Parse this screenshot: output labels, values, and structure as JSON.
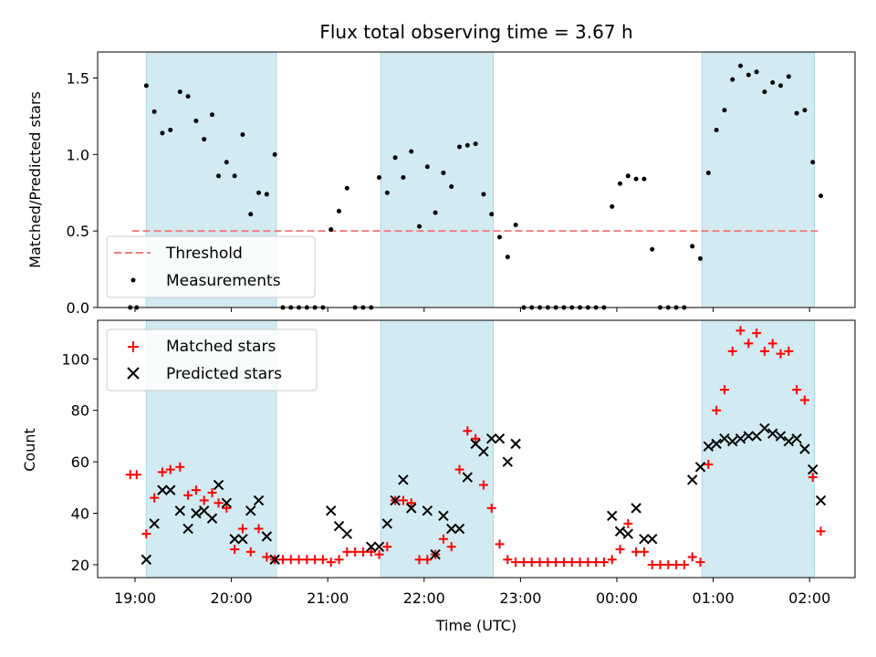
{
  "chart_data": [
    {
      "type": "scatter",
      "title": "Flux total observing time = 3.67 h",
      "ylabel": "Matched/Predicted stars",
      "xlabel": "",
      "ylim": [
        0,
        1.67
      ],
      "yticks": [
        "0.0",
        "0.5",
        "1.0",
        "1.5"
      ],
      "grid": false,
      "legend_position": "lower left",
      "threshold": {
        "name": "Threshold",
        "value": 0.5,
        "x_start": "18:58",
        "x_end": "02:05",
        "color": "#f08080",
        "style": "dashed"
      },
      "shaded_intervals": [
        {
          "start": "19:07",
          "end": "20:28"
        },
        {
          "start": "21:33",
          "end": "22:43"
        },
        {
          "start": "00:53",
          "end": "02:03"
        }
      ],
      "series": [
        {
          "name": "Measurements",
          "color": "#000000",
          "x": [
            "18:57",
            "19:01",
            "19:07",
            "19:12",
            "19:17",
            "19:22",
            "19:28",
            "19:33",
            "19:38",
            "19:43",
            "19:48",
            "19:52",
            "19:57",
            "20:02",
            "20:07",
            "20:12",
            "20:17",
            "20:22",
            "20:27",
            "20:32",
            "20:37",
            "20:42",
            "20:47",
            "20:52",
            "20:57",
            "21:02",
            "21:07",
            "21:12",
            "21:17",
            "21:22",
            "21:27",
            "21:32",
            "21:37",
            "21:42",
            "21:47",
            "21:52",
            "21:57",
            "22:02",
            "22:07",
            "22:12",
            "22:17",
            "22:22",
            "22:27",
            "22:32",
            "22:37",
            "22:42",
            "22:47",
            "22:52",
            "22:57",
            "23:02",
            "23:07",
            "23:12",
            "23:17",
            "23:22",
            "23:27",
            "23:32",
            "23:37",
            "23:42",
            "23:47",
            "23:52",
            "23:57",
            "00:02",
            "00:07",
            "00:12",
            "00:17",
            "00:22",
            "00:27",
            "00:32",
            "00:37",
            "00:42",
            "00:47",
            "00:52",
            "00:57",
            "01:02",
            "01:07",
            "01:12",
            "01:17",
            "01:22",
            "01:27",
            "01:32",
            "01:37",
            "01:42",
            "01:47",
            "01:52",
            "01:57",
            "02:02",
            "02:07"
          ],
          "y": [
            0.0,
            0.0,
            1.45,
            1.28,
            1.14,
            1.16,
            1.41,
            1.38,
            1.22,
            1.1,
            1.26,
            0.86,
            0.95,
            0.86,
            1.13,
            0.61,
            0.75,
            0.74,
            1.0,
            0.0,
            0.0,
            0.0,
            0.0,
            0.0,
            0.0,
            0.51,
            0.63,
            0.78,
            0.0,
            0.0,
            0.0,
            0.85,
            0.75,
            0.98,
            0.85,
            1.02,
            0.53,
            0.92,
            0.62,
            0.88,
            0.79,
            1.05,
            1.06,
            1.07,
            0.74,
            0.61,
            0.46,
            0.33,
            0.54,
            0.0,
            0.0,
            0.0,
            0.0,
            0.0,
            0.0,
            0.0,
            0.0,
            0.0,
            0.0,
            0.0,
            0.66,
            0.81,
            0.86,
            0.84,
            0.84,
            0.38,
            0.0,
            0.0,
            0.0,
            0.0,
            0.4,
            0.32,
            0.88,
            1.16,
            1.29,
            1.49,
            1.58,
            1.52,
            1.54,
            1.41,
            1.47,
            1.45,
            1.51,
            1.27,
            1.29,
            0.95,
            0.73
          ]
        }
      ]
    },
    {
      "type": "scatter",
      "title": "",
      "xlabel": "Time (UTC)",
      "ylabel": "Count",
      "ylim": [
        15,
        115
      ],
      "yticks": [
        "20",
        "40",
        "60",
        "80",
        "100"
      ],
      "xticks": [
        "19:00",
        "20:00",
        "21:00",
        "22:00",
        "23:00",
        "00:00",
        "01:00",
        "02:00"
      ],
      "grid": false,
      "legend_position": "upper left",
      "shaded_intervals": [
        {
          "start": "19:07",
          "end": "20:28"
        },
        {
          "start": "21:33",
          "end": "22:43"
        },
        {
          "start": "00:53",
          "end": "02:03"
        }
      ],
      "series": [
        {
          "name": "Matched stars",
          "marker": "plus",
          "color": "#ff0000",
          "x": [
            "18:57",
            "19:01",
            "19:07",
            "19:12",
            "19:17",
            "19:22",
            "19:28",
            "19:33",
            "19:38",
            "19:43",
            "19:48",
            "19:52",
            "19:57",
            "20:02",
            "20:07",
            "20:12",
            "20:17",
            "20:22",
            "20:27",
            "20:32",
            "20:37",
            "20:42",
            "20:47",
            "20:52",
            "20:57",
            "21:02",
            "21:07",
            "21:12",
            "21:17",
            "21:22",
            "21:27",
            "21:32",
            "21:37",
            "21:42",
            "21:47",
            "21:52",
            "21:57",
            "22:02",
            "22:07",
            "22:12",
            "22:17",
            "22:22",
            "22:27",
            "22:32",
            "22:37",
            "22:42",
            "22:47",
            "22:52",
            "22:57",
            "23:02",
            "23:07",
            "23:12",
            "23:17",
            "23:22",
            "23:27",
            "23:32",
            "23:37",
            "23:42",
            "23:47",
            "23:52",
            "23:57",
            "00:02",
            "00:07",
            "00:12",
            "00:17",
            "00:22",
            "00:27",
            "00:32",
            "00:37",
            "00:42",
            "00:47",
            "00:52",
            "00:57",
            "01:02",
            "01:07",
            "01:12",
            "01:17",
            "01:22",
            "01:27",
            "01:32",
            "01:37",
            "01:42",
            "01:47",
            "01:52",
            "01:57",
            "02:02",
            "02:07"
          ],
          "y": [
            55,
            55,
            32,
            46,
            56,
            57,
            58,
            47,
            49,
            45,
            48,
            44,
            42,
            26,
            34,
            25,
            34,
            23,
            22,
            22,
            22,
            22,
            22,
            22,
            22,
            21,
            22,
            25,
            25,
            25,
            25,
            24,
            27,
            45,
            45,
            44,
            22,
            22,
            24,
            30,
            27,
            57,
            72,
            69,
            51,
            42,
            28,
            22,
            21,
            21,
            21,
            21,
            21,
            21,
            21,
            21,
            21,
            21,
            21,
            21,
            22,
            26,
            36,
            25,
            25,
            20,
            20,
            20,
            20,
            20,
            23,
            21,
            59,
            80,
            88,
            103,
            111,
            106,
            110,
            103,
            106,
            102,
            103,
            88,
            84,
            54,
            33
          ]
        },
        {
          "name": "Predicted stars",
          "marker": "x",
          "color": "#000000",
          "x": [
            "19:07",
            "19:12",
            "19:17",
            "19:22",
            "19:28",
            "19:33",
            "19:38",
            "19:43",
            "19:48",
            "19:52",
            "19:57",
            "20:02",
            "20:07",
            "20:12",
            "20:17",
            "20:22",
            "20:27",
            "21:02",
            "21:07",
            "21:12",
            "21:27",
            "21:32",
            "21:37",
            "21:42",
            "21:47",
            "21:52",
            "22:02",
            "22:07",
            "22:12",
            "22:17",
            "22:22",
            "22:27",
            "22:32",
            "22:37",
            "22:42",
            "22:47",
            "22:52",
            "22:57",
            "23:57",
            "00:02",
            "00:07",
            "00:12",
            "00:17",
            "00:22",
            "00:47",
            "00:52",
            "00:57",
            "01:02",
            "01:07",
            "01:12",
            "01:17",
            "01:22",
            "01:27",
            "01:32",
            "01:37",
            "01:42",
            "01:47",
            "01:52",
            "01:57",
            "02:02",
            "02:07"
          ],
          "y": [
            22,
            36,
            49,
            49,
            41,
            34,
            40,
            41,
            38,
            51,
            44,
            30,
            30,
            41,
            45,
            31,
            22,
            41,
            35,
            32,
            27,
            27,
            36,
            45,
            53,
            42,
            41,
            24,
            39,
            34,
            34,
            54,
            67,
            64,
            69,
            69,
            60,
            67,
            39,
            33,
            32,
            42,
            30,
            30,
            53,
            58,
            66,
            67,
            69,
            68,
            69,
            70,
            70,
            73,
            71,
            70,
            68,
            69,
            65,
            57,
            45
          ]
        }
      ]
    }
  ],
  "colors": {
    "shade": "#add8e6",
    "axis": "#000000"
  }
}
